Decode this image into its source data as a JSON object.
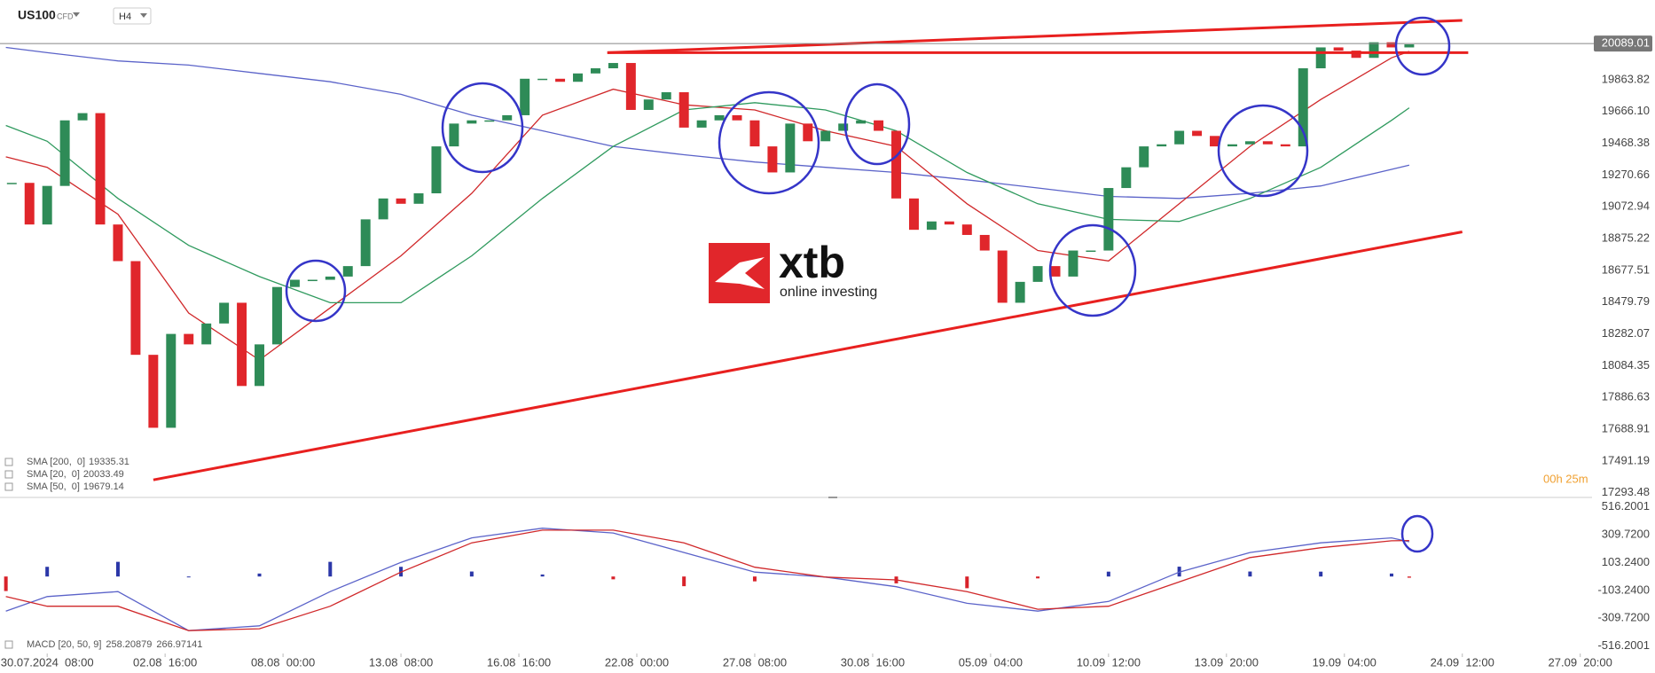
{
  "header": {
    "symbol": "US100",
    "instrument_type": "CFD",
    "timeframe": "H4"
  },
  "watermark": {
    "brand": "xtb",
    "tagline": "online investing"
  },
  "timer": "00h 25m",
  "chart_data": [
    {
      "type": "candlestick",
      "x": [
        -6,
        -3,
        0,
        3,
        6,
        9,
        12,
        15,
        18,
        21,
        24,
        27,
        30,
        33,
        36,
        39,
        42,
        45,
        48,
        51,
        54,
        57,
        60,
        63,
        66,
        69,
        72,
        75,
        78,
        81,
        84,
        87,
        90,
        93,
        96,
        99,
        102,
        105,
        108,
        111,
        114,
        117,
        120,
        123,
        126,
        129,
        132,
        135,
        138,
        141,
        144,
        147,
        150,
        153,
        156,
        159,
        162,
        165,
        168,
        171,
        174,
        177,
        180,
        183,
        186,
        189,
        192,
        195,
        198,
        201,
        204,
        207,
        210,
        213,
        216,
        219,
        222,
        225,
        228,
        231
      ],
      "values": [
        19222,
        18963,
        19203,
        19611,
        19656,
        18963,
        18735,
        18152,
        17698,
        18282,
        18217,
        18347,
        18476,
        17958,
        18217,
        18574,
        18619,
        18619,
        18639,
        18704,
        18995,
        19125,
        19092,
        19157,
        19449,
        19591,
        19611,
        19611,
        19643,
        19870,
        19870,
        19851,
        19903,
        19935,
        19968,
        19676,
        19741,
        19786,
        19566,
        19611,
        19643,
        19611,
        19449,
        19287,
        19591,
        19481,
        19546,
        19591,
        19611,
        19546,
        19125,
        18930,
        18982,
        18963,
        18898,
        18801,
        18476,
        18606,
        18704,
        18639,
        18801,
        18801,
        19190,
        19319,
        19449,
        19462,
        19546,
        19514,
        19449,
        19462,
        19481,
        19462,
        19449,
        19935,
        20065,
        20045,
        20000,
        20097,
        20065,
        20084
      ],
      "up_color": "#2e8b57",
      "down_color": "#e0262b",
      "last_price": 20089.01,
      "xlim": [
        -8,
        262
      ],
      "ylim": [
        17270,
        20360
      ],
      "yticks": [
        19863.82,
        {
          "value": 19666.1,
          "label": "19666.10"
        },
        19468.38,
        19270.66,
        19072.94,
        18875.22,
        18677.51,
        18479.79,
        18282.07,
        18084.35,
        17886.63,
        17688.91,
        17491.19,
        17293.48
      ],
      "xticks": [
        {
          "value": 0,
          "label": "30.07.2024  08:00"
        },
        {
          "value": 20,
          "label": "02.08  16:00"
        },
        {
          "value": 40,
          "label": "08.08  00:00"
        },
        {
          "value": 60,
          "label": "13.08  08:00"
        },
        {
          "value": 80,
          "label": "16.08  16:00"
        },
        {
          "value": 100,
          "label": "22.08  00:00"
        },
        {
          "value": 120,
          "label": "27.08  08:00"
        },
        {
          "value": 140,
          "label": "30.08  16:00"
        },
        {
          "value": 160,
          "label": "05.09  04:00"
        },
        {
          "value": 180,
          "label": "10.09  12:00"
        },
        {
          "value": 200,
          "label": "13.09  20:00"
        },
        {
          "value": 220,
          "label": "19.09  04:00"
        },
        {
          "value": 240,
          "label": "24.09  12:00"
        },
        {
          "value": 260,
          "label": "27.09  20:00"
        }
      ],
      "series": [
        {
          "name": "SMA [200,  0]",
          "color": "#5b63c9",
          "last_value": 19335.31,
          "x": [
            -7,
            0,
            12,
            24,
            36,
            48,
            60,
            72,
            84,
            96,
            108,
            120,
            132,
            144,
            156,
            168,
            180,
            192,
            204,
            216,
            228,
            231
          ],
          "values": [
            20065,
            20032,
            19981,
            19955,
            19903,
            19851,
            19773,
            19643,
            19546,
            19449,
            19397,
            19352,
            19319,
            19287,
            19241,
            19190,
            19138,
            19125,
            19157,
            19203,
            19306,
            19332
          ]
        },
        {
          "name": "SMA [20,  0]",
          "color": "#d0282a",
          "last_value": 20033.49,
          "x": [
            -7,
            0,
            12,
            24,
            36,
            48,
            60,
            72,
            84,
            96,
            108,
            120,
            132,
            144,
            156,
            168,
            180,
            192,
            204,
            216,
            228,
            231
          ],
          "values": [
            19384,
            19319,
            19027,
            18412,
            18120,
            18444,
            18768,
            19157,
            19643,
            19805,
            19708,
            19676,
            19546,
            19449,
            19092,
            18801,
            18736,
            19092,
            19449,
            19741,
            20000,
            20040
          ]
        },
        {
          "name": "SMA [50,  0]",
          "color": "#2f9a5e",
          "last_value": 19679.14,
          "x": [
            -7,
            0,
            12,
            24,
            36,
            48,
            60,
            72,
            84,
            96,
            108,
            120,
            132,
            144,
            156,
            168,
            180,
            192,
            204,
            216,
            228,
            231
          ],
          "values": [
            19579,
            19481,
            19125,
            18833,
            18639,
            18476,
            18476,
            18768,
            19125,
            19449,
            19676,
            19721,
            19676,
            19546,
            19287,
            19092,
            18995,
            18982,
            19125,
            19319,
            19611,
            19689
          ]
        }
      ],
      "trendlines": [
        {
          "color": "#e8201f",
          "x": [
            18,
            240
          ],
          "values": [
            17374,
            18917
          ]
        },
        {
          "color": "#e8201f",
          "x": [
            95,
            240
          ],
          "values": [
            20032,
            20233
          ]
        },
        {
          "color": "#e8201f",
          "x": [
            95,
            241
          ],
          "values": [
            20032,
            20032
          ]
        }
      ]
    },
    {
      "type": "macd",
      "label": "MACD [20, 50, 9]",
      "x": [
        -7,
        0,
        12,
        24,
        36,
        48,
        60,
        72,
        84,
        96,
        108,
        120,
        132,
        144,
        156,
        168,
        180,
        192,
        204,
        216,
        228,
        231
      ],
      "series": [
        {
          "color": "#5b63c9",
          "last_value": 258.20879,
          "values": [
            -257,
            -149,
            -112,
            -402,
            -366,
            -112,
            105,
            287,
            359,
            323,
            178,
            33,
            -4,
            -76,
            -199,
            -257,
            -185,
            33,
            178,
            250,
            287,
            258
          ]
        },
        {
          "color": "#d0282a",
          "last_value": 266.97141,
          "values": [
            -149,
            -221,
            -221,
            -402,
            -388,
            -221,
            33,
            250,
            344,
            344,
            250,
            69,
            -4,
            -25,
            -112,
            -243,
            -221,
            -40,
            141,
            214,
            265,
            267
          ]
        }
      ],
      "histogram": [
        -108,
        72,
        109,
        0,
        22,
        109,
        72,
        37,
        15,
        -21,
        -72,
        -36,
        0,
        -51,
        -87,
        -14,
        36,
        73,
        37,
        36,
        22,
        -9
      ],
      "positive_color": "#2b37a8",
      "negative_color": "#d8222a",
      "ylim": [
        -552,
        574
      ],
      "yticks": [
        516.2001,
        {
          "value": 309.72,
          "label": "309.7200"
        },
        {
          "value": 103.24,
          "label": "103.2400"
        },
        {
          "value": -103.24,
          "label": "-103.2400"
        },
        {
          "value": -309.72,
          "label": "-309.7200"
        },
        -516.2001
      ]
    }
  ]
}
